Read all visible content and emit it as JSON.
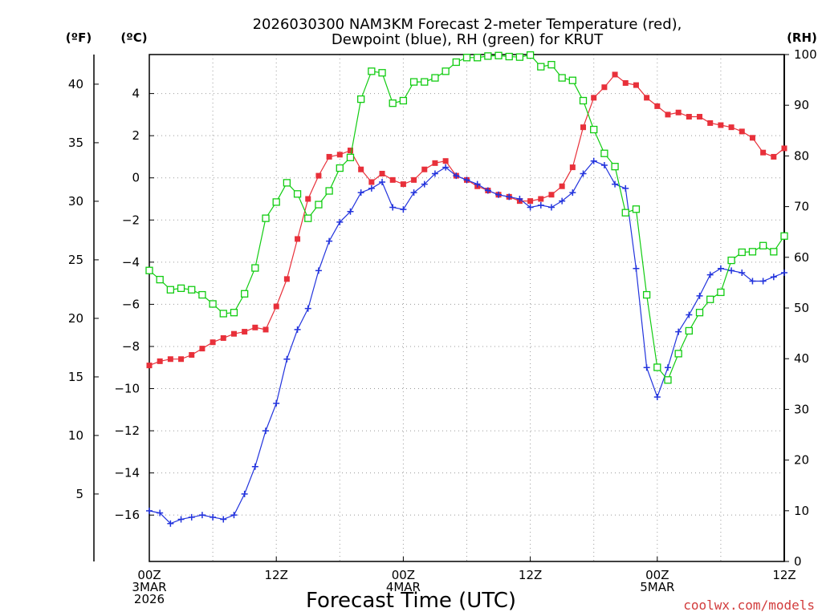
{
  "chart_data": {
    "type": "line",
    "title": "2026030300 NAM3KM Forecast 2-meter Temperature (red),",
    "subtitle": "Dewpoint (blue), RH (green) for KRUT",
    "xlabel": "Forecast Time (UTC)",
    "credit": "coolwx.com/models",
    "units": {
      "f": "(ºF)",
      "c": "(ºC)",
      "rh": "(RH)"
    },
    "x_range_hours": [
      0,
      60
    ],
    "ylim_c": [
      -18.2,
      5.85
    ],
    "ylim_rh": [
      0,
      100
    ],
    "x_ticks": [
      {
        "hour": 0,
        "lines": [
          "00Z",
          "3MAR",
          "2026"
        ]
      },
      {
        "hour": 12,
        "lines": [
          "12Z"
        ]
      },
      {
        "hour": 24,
        "lines": [
          "00Z",
          "4MAR"
        ]
      },
      {
        "hour": 36,
        "lines": [
          "12Z"
        ]
      },
      {
        "hour": 48,
        "lines": [
          "00Z",
          "5MAR"
        ]
      },
      {
        "hour": 60,
        "lines": [
          "12Z"
        ]
      }
    ],
    "c_ticks": [
      4,
      2,
      0,
      -2,
      -4,
      -6,
      -8,
      -10,
      -12,
      -14,
      -16
    ],
    "f_ticks": [
      40,
      35,
      30,
      25,
      20,
      15,
      10,
      5
    ],
    "rh_ticks": [
      100,
      90,
      80,
      70,
      60,
      50,
      40,
      30,
      20,
      10,
      0
    ],
    "colors": {
      "temperature": "#e8303a",
      "dewpoint": "#2233dd",
      "rh": "#11cc11",
      "axis": "#000000",
      "credit": "#d23c3c"
    },
    "series": [
      {
        "name": "Temperature (°C)",
        "axis": "c",
        "marker": "filled-square",
        "hours": [
          0,
          1,
          2,
          3,
          4,
          5,
          6,
          7,
          8,
          9,
          10,
          11,
          12,
          13,
          14,
          15,
          16,
          17,
          18,
          19,
          20,
          21,
          22,
          23,
          24,
          25,
          26,
          27,
          28,
          29,
          30,
          31,
          32,
          33,
          34,
          35,
          36,
          37,
          38,
          39,
          40,
          41,
          42,
          43,
          44,
          45,
          46,
          47,
          48,
          49,
          50,
          51,
          52,
          53,
          54,
          55,
          56,
          57,
          58,
          59,
          60
        ],
        "values": [
          -8.9,
          -8.7,
          -8.6,
          -8.6,
          -8.4,
          -8.1,
          -7.8,
          -7.6,
          -7.4,
          -7.3,
          -7.1,
          -7.2,
          -6.1,
          -4.8,
          -2.9,
          -1.0,
          0.1,
          1.0,
          1.1,
          1.3,
          0.4,
          -0.2,
          0.2,
          -0.1,
          -0.3,
          -0.1,
          0.4,
          0.7,
          0.8,
          0.1,
          -0.1,
          -0.4,
          -0.6,
          -0.8,
          -0.9,
          -1.1,
          -1.1,
          -1.0,
          -0.8,
          -0.4,
          0.5,
          2.4,
          3.8,
          4.3,
          4.9,
          4.5,
          4.4,
          3.8,
          3.4,
          3.0,
          3.1,
          2.9,
          2.9,
          2.6,
          2.5,
          2.4,
          2.2,
          1.9,
          1.2,
          1.0,
          1.4
        ]
      },
      {
        "name": "Dewpoint (°C)",
        "axis": "c",
        "marker": "plus",
        "hours": [
          0,
          1,
          2,
          3,
          4,
          5,
          6,
          7,
          8,
          9,
          10,
          11,
          12,
          13,
          14,
          15,
          16,
          17,
          18,
          19,
          20,
          21,
          22,
          23,
          24,
          25,
          26,
          27,
          28,
          29,
          30,
          31,
          32,
          33,
          34,
          35,
          36,
          37,
          38,
          39,
          40,
          41,
          42,
          43,
          44,
          45,
          46,
          47,
          48,
          49,
          50,
          51,
          52,
          53,
          54,
          55,
          56,
          57,
          58,
          59,
          60
        ],
        "values": [
          -15.8,
          -15.9,
          -16.4,
          -16.2,
          -16.1,
          -16.0,
          -16.1,
          -16.2,
          -16.0,
          -15.0,
          -13.7,
          -12.0,
          -10.7,
          -8.6,
          -7.2,
          -6.2,
          -4.4,
          -3.0,
          -2.1,
          -1.6,
          -0.7,
          -0.5,
          -0.2,
          -1.4,
          -1.5,
          -0.7,
          -0.3,
          0.2,
          0.5,
          0.1,
          -0.1,
          -0.3,
          -0.6,
          -0.8,
          -0.9,
          -1.0,
          -1.4,
          -1.3,
          -1.4,
          -1.1,
          -0.7,
          0.2,
          0.8,
          0.6,
          -0.3,
          -0.5,
          -4.3,
          -9.0,
          -10.4,
          -9.0,
          -7.3,
          -6.5,
          -5.6,
          -4.6,
          -4.3,
          -4.4,
          -4.5,
          -4.9,
          -4.9,
          -4.7,
          -4.5
        ]
      },
      {
        "name": "RH (%)",
        "axis": "rh",
        "marker": "open-square",
        "hours": [
          0,
          1,
          2,
          3,
          4,
          5,
          6,
          7,
          8,
          9,
          10,
          11,
          12,
          13,
          14,
          15,
          16,
          17,
          18,
          19,
          20,
          21,
          22,
          23,
          24,
          25,
          26,
          27,
          28,
          29,
          30,
          31,
          32,
          33,
          34,
          35,
          36,
          37,
          38,
          39,
          40,
          41,
          42,
          43,
          44,
          45,
          46,
          47,
          48,
          49,
          50,
          51,
          52,
          53,
          54,
          55,
          56,
          57,
          58,
          59,
          60
        ],
        "values": [
          57.4,
          55.6,
          53.6,
          53.9,
          53.6,
          52.6,
          50.8,
          48.9,
          49.1,
          52.8,
          57.9,
          67.7,
          70.9,
          74.7,
          72.5,
          67.7,
          70.4,
          73.1,
          77.6,
          79.7,
          91.2,
          96.7,
          96.4,
          90.4,
          90.9,
          94.6,
          94.6,
          95.4,
          96.7,
          98.5,
          99.4,
          99.4,
          99.7,
          99.8,
          99.6,
          99.5,
          99.9,
          97.6,
          98.0,
          95.4,
          94.9,
          90.9,
          85.2,
          80.5,
          77.9,
          68.8,
          69.5,
          52.6,
          38.3,
          35.8,
          41.0,
          45.5,
          49.1,
          51.7,
          53.1,
          59.4,
          61.0,
          61.1,
          62.3,
          61.1,
          64.2
        ]
      }
    ]
  }
}
